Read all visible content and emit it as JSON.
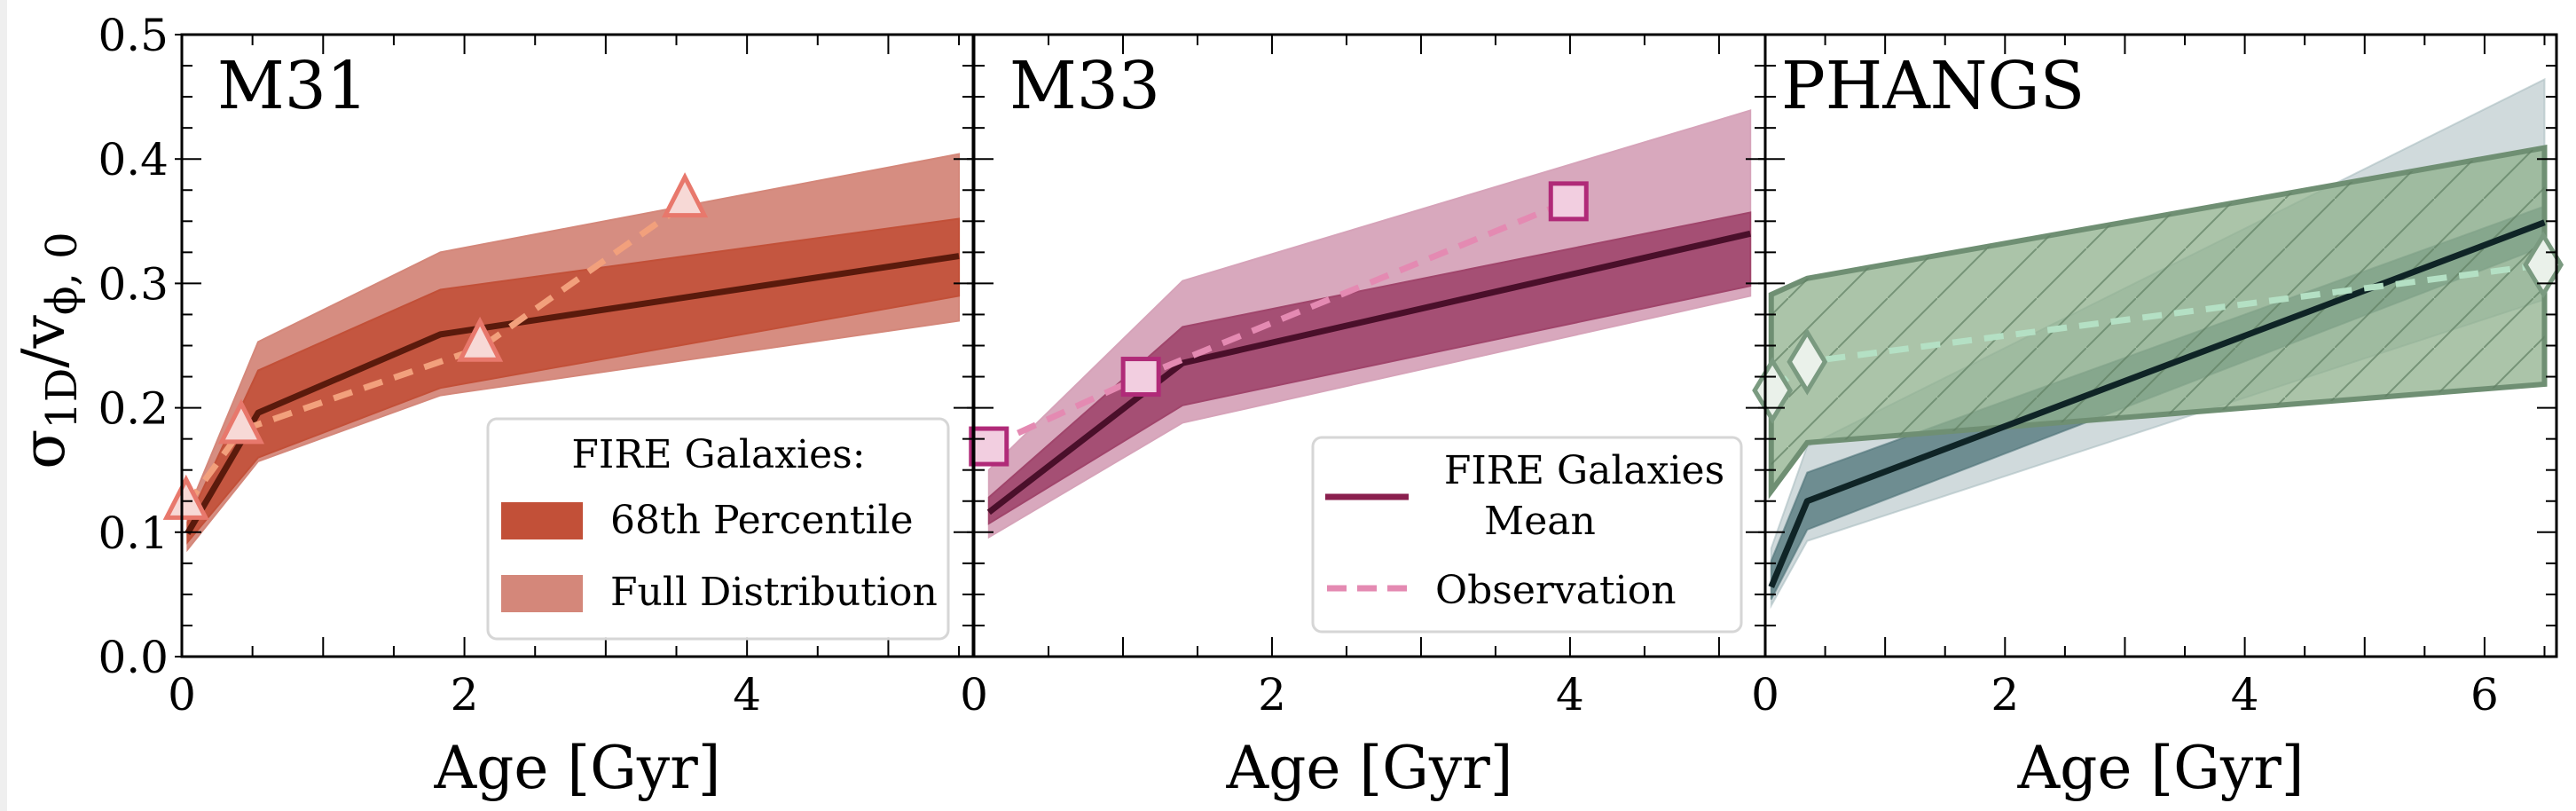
{
  "chart_data": [
    {
      "type": "line",
      "title": "M31",
      "xlabel": "Age [Gyr]",
      "ylabel": "σ1D/vϕ,0",
      "xlim": [
        0,
        5.6
      ],
      "ylim": [
        0,
        0.5
      ],
      "xticks": [
        0,
        2,
        4
      ],
      "yticks": [
        0.0,
        0.1,
        0.2,
        0.3,
        0.4,
        0.5
      ],
      "ytick_labels": [
        "0.0",
        "0.1",
        "0.2",
        "0.3",
        "0.4",
        "0.5"
      ],
      "colors": {
        "full": "#d4877a",
        "p68": "#c25038",
        "mean": "#5a1a0c",
        "obs_line": "#f2a07c",
        "marker_face": "#f7d9d6",
        "marker_edge": "#e8786c"
      },
      "fire": {
        "age": [
          0.04,
          0.54,
          1.83,
          5.5
        ],
        "mean": [
          0.099,
          0.196,
          0.259,
          0.322
        ],
        "p68_low": [
          0.092,
          0.16,
          0.216,
          0.29
        ],
        "p68_high": [
          0.108,
          0.23,
          0.295,
          0.352
        ],
        "full_low": [
          0.086,
          0.157,
          0.21,
          0.27
        ],
        "full_high": [
          0.116,
          0.253,
          0.325,
          0.404
        ]
      },
      "observation": {
        "marker": "triangle",
        "age": [
          0.03,
          0.42,
          2.11,
          3.56
        ],
        "value": [
          0.121,
          0.182,
          0.248,
          0.364
        ]
      },
      "legend": {
        "placement": "lower-right",
        "title": "FIRE Galaxies:",
        "entries": [
          "68th Percentile",
          "Full Distribution"
        ]
      }
    },
    {
      "type": "line",
      "title": "M33",
      "xlabel": "Age [Gyr]",
      "xlim": [
        0,
        5.31
      ],
      "ylim": [
        0,
        0.5
      ],
      "xticks": [
        0,
        2,
        4
      ],
      "colors": {
        "full": "#d6a3b9",
        "p68": "#a0456b",
        "mean": "#4a0f2a",
        "obs_line": "#e48ab2",
        "marker_face": "#f2cee0",
        "marker_edge": "#b02a78"
      },
      "fire": {
        "age": [
          0.1,
          1.4,
          5.21
        ],
        "mean": [
          0.116,
          0.236,
          0.34
        ],
        "p68_low": [
          0.107,
          0.202,
          0.298
        ],
        "p68_high": [
          0.128,
          0.265,
          0.357
        ],
        "full_low": [
          0.096,
          0.188,
          0.29
        ],
        "full_high": [
          0.15,
          0.302,
          0.439
        ]
      },
      "observation": {
        "marker": "square",
        "age": [
          0.1,
          1.12,
          3.99
        ],
        "value": [
          0.169,
          0.225,
          0.366
        ]
      },
      "legend": {
        "placement": "lower-right",
        "entries": [
          {
            "label_line1": "FIRE Galaxies",
            "label_line2": "Mean",
            "style": "solid",
            "color": "#8a1f4e"
          },
          {
            "label_line1": "Observation",
            "style": "dashed",
            "color": "#e48ab2"
          }
        ]
      }
    },
    {
      "type": "line",
      "title": "PHANGS",
      "xlabel": "Age [Gyr]",
      "xlim": [
        0,
        6.6
      ],
      "ylim": [
        0,
        0.5
      ],
      "xticks": [
        0,
        2,
        4,
        6
      ],
      "colors": {
        "full": "#a9bcc0",
        "p68": "#4e7378",
        "mean": "#0f2426",
        "obs_line": "#b4e0c4",
        "obs_band": "#8fb08c",
        "obs_band_edge": "#6f8f73",
        "marker_face": "#eaf1ea",
        "marker_edge": "#7a9a80"
      },
      "fire": {
        "age": [
          0.05,
          0.35,
          6.5
        ],
        "mean": [
          0.056,
          0.125,
          0.349
        ],
        "p68_low": [
          0.046,
          0.102,
          0.33
        ],
        "p68_high": [
          0.077,
          0.148,
          0.362
        ],
        "full_low": [
          0.041,
          0.093,
          0.287
        ],
        "full_high": [
          0.087,
          0.169,
          0.464
        ]
      },
      "observation_band": {
        "age": [
          0.05,
          0.35,
          6.5
        ],
        "low": [
          0.133,
          0.172,
          0.219
        ],
        "high": [
          0.291,
          0.304,
          0.409
        ]
      },
      "observation": {
        "marker": "diamond",
        "age": [
          0.06,
          0.35,
          6.49
        ],
        "value": [
          0.214,
          0.237,
          0.315
        ]
      }
    }
  ]
}
